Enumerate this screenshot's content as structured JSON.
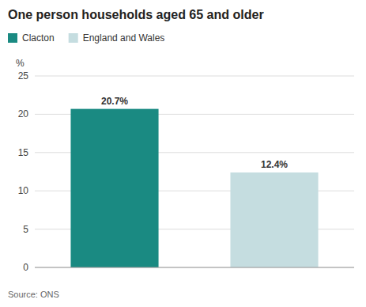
{
  "chart_data": {
    "type": "bar",
    "title": "One person households aged 65 and older",
    "categories": [
      "Clacton",
      "England and Wales"
    ],
    "values": [
      20.7,
      12.4
    ],
    "value_labels": [
      "20.7%",
      "12.4%"
    ],
    "data_labels": true,
    "colors": [
      "#1a8a82",
      "#c5dde0"
    ],
    "ylabel": "%",
    "ylim": [
      0,
      25
    ],
    "yticks": [
      0,
      5,
      10,
      15,
      20,
      25
    ],
    "grid": true,
    "legend": "top",
    "tick_labels": "y",
    "annotations": [
      "Source: ONS"
    ]
  }
}
